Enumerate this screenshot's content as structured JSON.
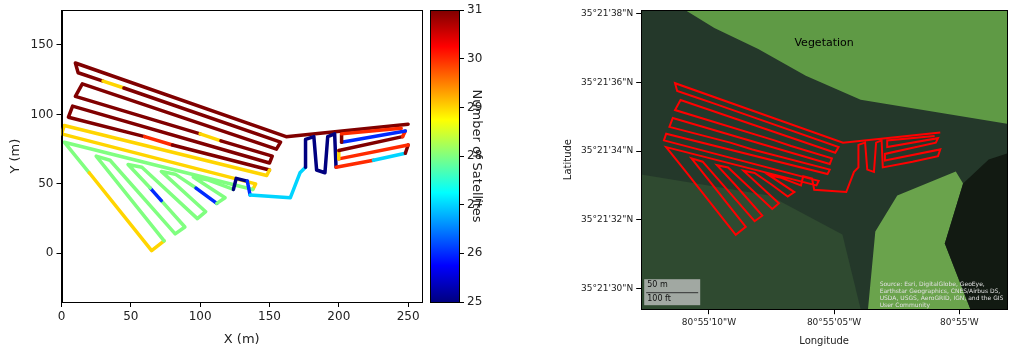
{
  "chart_data": [
    {
      "type": "line",
      "xlabel": "X (m)",
      "ylabel": "Y (m)",
      "xlim": [
        0,
        260
      ],
      "xticks": [
        0,
        50,
        100,
        150,
        200,
        250
      ],
      "ylim": [
        -35,
        175
      ],
      "yticks": [
        0,
        50,
        100,
        150
      ],
      "grid": false,
      "x": [
        250,
        162,
        10,
        12,
        30,
        45,
        158,
        155,
        15,
        10,
        100,
        115,
        152,
        150,
        8,
        5,
        60,
        80,
        150,
        148,
        2,
        0,
        140,
        138,
        2,
        20,
        65,
        74,
        25,
        35,
        82,
        89,
        72,
        64,
        48,
        58,
        98,
        104,
        72,
        82,
        97,
        112,
        118,
        95,
        105,
        124,
        126,
        134,
        136,
        165,
        172,
        176,
        176,
        182,
        184,
        190,
        192,
        197,
        198,
        225,
        248,
        250,
        200,
        200,
        246,
        248,
        202,
        202,
        245
      ],
      "values": [
        93,
        84,
        137,
        130,
        124,
        119,
        80,
        75,
        122,
        113,
        86,
        81,
        70,
        65,
        106,
        98,
        84,
        78,
        60,
        56,
        92,
        86,
        50,
        46,
        80,
        58,
        2,
        9,
        70,
        67,
        14,
        19,
        38,
        47,
        64,
        62,
        25,
        30,
        59,
        57,
        47,
        36,
        40,
        55,
        53,
        46,
        54,
        52,
        42,
        40,
        58,
        62,
        82,
        84,
        60,
        58,
        84,
        86,
        62,
        67,
        72,
        78,
        68,
        74,
        84,
        88,
        80,
        86,
        90
      ],
      "satellites": [
        31,
        31,
        31,
        31,
        29,
        31,
        31,
        31,
        31,
        31,
        29,
        31,
        31,
        31,
        31,
        31,
        30,
        31,
        29,
        29,
        29,
        29,
        29,
        28,
        28,
        29,
        29,
        28,
        28,
        28,
        28,
        28,
        26,
        28,
        28,
        28,
        28,
        28,
        28,
        28,
        26,
        28,
        28,
        28,
        28,
        25,
        25,
        26,
        27,
        27,
        27,
        25,
        25,
        25,
        25,
        25,
        25,
        25,
        30,
        27,
        31,
        30,
        29,
        31,
        30,
        26,
        31,
        30,
        31
      ],
      "colorbar": {
        "label": "Number of Satellites",
        "range": [
          25,
          31
        ],
        "ticks": [
          25,
          26,
          27,
          28,
          29,
          30,
          31
        ]
      }
    },
    {
      "type": "line",
      "xlabel": "Longitude",
      "ylabel": "Latitude",
      "xlim": [
        -80.920194,
        -80.916139
      ],
      "xticks": [
        {
          "value": -80.919444,
          "label": "80°55'10\"W"
        },
        {
          "value": -80.918056,
          "label": "80°55'05\"W"
        },
        {
          "value": -80.916667,
          "label": "80°55'W"
        }
      ],
      "ylim": [
        35.358167,
        35.360583
      ],
      "yticks": [
        {
          "value": 35.358333,
          "label": "35°21'30\"N"
        },
        {
          "value": 35.358889,
          "label": "35°21'32\"N"
        },
        {
          "value": 35.359444,
          "label": "35°21'34\"N"
        },
        {
          "value": 35.36,
          "label": "35°21'36\"N"
        },
        {
          "value": 35.360556,
          "label": "35°21'38\"N"
        }
      ],
      "grid": false,
      "color": "#ff0000",
      "x": [
        -80.916879,
        -80.917957,
        -80.919819,
        -80.919795,
        -80.919574,
        -80.919391,
        -80.918006,
        -80.918043,
        -80.919758,
        -80.919819,
        -80.918717,
        -80.918533,
        -80.91808,
        -80.918104,
        -80.919844,
        -80.919881,
        -80.919207,
        -80.918962,
        -80.918104,
        -80.918129,
        -80.919917,
        -80.919942,
        -80.918227,
        -80.918251,
        -80.919917,
        -80.919697,
        -80.919146,
        -80.919035,
        -80.919636,
        -80.919513,
        -80.918937,
        -80.918852,
        -80.91906,
        -80.919158,
        -80.919354,
        -80.919231,
        -80.918741,
        -80.918668,
        -80.91906,
        -80.918937,
        -80.918754,
        -80.91857,
        -80.918496,
        -80.918778,
        -80.918656,
        -80.918423,
        -80.918398,
        -80.9183,
        -80.918276,
        -80.917921,
        -80.917835,
        -80.917786,
        -80.917786,
        -80.917712,
        -80.917688,
        -80.917614,
        -80.91759,
        -80.917529,
        -80.917516,
        -80.917186,
        -80.916904,
        -80.916879,
        -80.917492,
        -80.917492,
        -80.916928,
        -80.916904,
        -80.917467,
        -80.917467,
        -80.916941
      ],
      "values": [
        35.359593,
        35.359512,
        35.359992,
        35.359929,
        35.359875,
        35.359829,
        35.359476,
        35.35943,
        35.359856,
        35.359775,
        35.35953,
        35.359485,
        35.359385,
        35.359339,
        35.359711,
        35.359639,
        35.359512,
        35.359457,
        35.359294,
        35.359258,
        35.359584,
        35.35953,
        35.359203,
        35.359167,
        35.359476,
        35.359276,
        35.358768,
        35.358832,
        35.359385,
        35.359358,
        35.358877,
        35.358922,
        35.359095,
        35.359176,
        35.35933,
        35.359312,
        35.358977,
        35.359022,
        35.359285,
        35.359267,
        35.359176,
        35.359076,
        35.359113,
        35.359249,
        35.359231,
        35.359167,
        35.35924,
        35.359222,
        35.359131,
        35.359113,
        35.359276,
        35.359312,
        35.359494,
        35.359512,
        35.359294,
        35.359276,
        35.359512,
        35.35953,
        35.359312,
        35.359358,
        35.359403,
        35.359457,
        35.359367,
        35.359421,
        35.359512,
        35.359548,
        35.359476,
        35.35953,
        35.359566
      ],
      "annotations": [
        "Vegetation",
        "50 m",
        "100 ft",
        "Source: Esri, DigitalGlobe, GeoEye, Earthstar Geographics, CNES/Airbus DS, USDA, USGS, AeroGRID, IGN, and the GIS User Community"
      ]
    }
  ]
}
